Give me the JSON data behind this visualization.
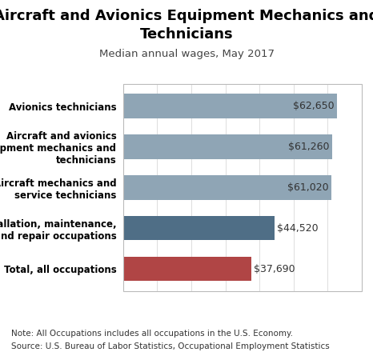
{
  "title": "Aircraft and Avionics Equipment Mechanics and\nTechnicians",
  "subtitle": "Median annual wages, May 2017",
  "categories": [
    "Total, all occupations",
    "Installation, maintenance,\nand repair occupations",
    "Aircraft mechanics and\nservice technicians",
    "Aircraft and avionics\nequipment mechanics and\ntechnicians",
    "Avionics technicians"
  ],
  "values": [
    37690,
    44520,
    61020,
    61260,
    62650
  ],
  "labels": [
    "$37,690",
    "$44,520",
    "$61,020",
    "$61,260",
    "$62,650"
  ],
  "bar_colors": [
    "#b04545",
    "#4f6e86",
    "#8fa5b5",
    "#8fa5b5",
    "#8fa5b5"
  ],
  "xlim": [
    0,
    70000
  ],
  "note": "Note: All Occupations includes all occupations in the U.S. Economy.",
  "source": "Source: U.S. Bureau of Labor Statistics, Occupational Employment Statistics",
  "background_color": "#ffffff",
  "title_fontsize": 13,
  "subtitle_fontsize": 9.5,
  "label_fontsize": 9,
  "ytick_fontsize": 8.5,
  "note_fontsize": 7.5,
  "bar_height": 0.6,
  "label_threshold": 50000
}
